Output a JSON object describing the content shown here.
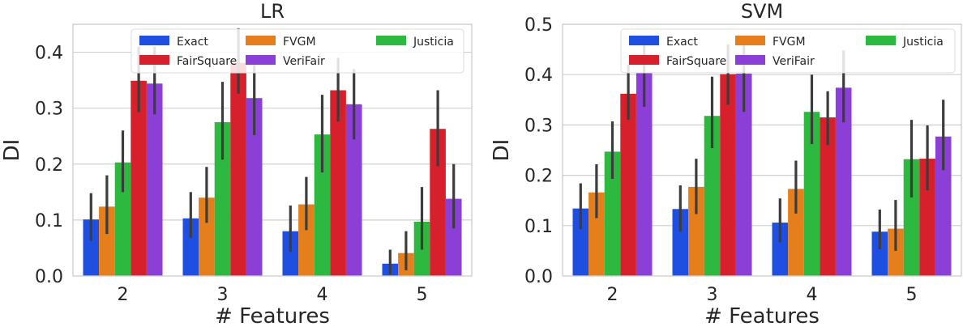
{
  "chart_data": [
    {
      "type": "bar",
      "title": "LR",
      "xlabel": "# Features",
      "ylabel": "DI",
      "categories": [
        "2",
        "3",
        "4",
        "5"
      ],
      "ylim": [
        0,
        0.45
      ],
      "yticks": [
        0.0,
        0.1,
        0.2,
        0.3,
        0.4
      ],
      "ytick_labels": [
        "0.0",
        "0.1",
        "0.2",
        "0.3",
        "0.4"
      ],
      "grid": true,
      "legend_position": "top-right",
      "series": [
        {
          "name": "Exact",
          "color": "#1f4fe0",
          "values": [
            0.101,
            0.103,
            0.08,
            0.022
          ],
          "err_low": [
            0.063,
            0.068,
            0.043,
            0.003
          ],
          "err_high": [
            0.148,
            0.15,
            0.126,
            0.047
          ]
        },
        {
          "name": "FVGM",
          "color": "#e57f1c",
          "values": [
            0.124,
            0.14,
            0.128,
            0.041
          ],
          "err_low": [
            0.075,
            0.095,
            0.082,
            0.01
          ],
          "err_high": [
            0.18,
            0.195,
            0.177,
            0.08
          ]
        },
        {
          "name": "Justicia",
          "color": "#2db83f",
          "values": [
            0.203,
            0.275,
            0.253,
            0.097
          ],
          "err_low": [
            0.15,
            0.208,
            0.185,
            0.047
          ],
          "err_high": [
            0.26,
            0.347,
            0.324,
            0.159
          ]
        },
        {
          "name": "FairSquare",
          "color": "#d6202b",
          "values": [
            0.349,
            0.381,
            0.332,
            0.263
          ],
          "err_low": [
            0.293,
            0.326,
            0.276,
            0.196
          ],
          "err_high": [
            0.41,
            0.443,
            0.39,
            0.332
          ]
        },
        {
          "name": "VeriFair",
          "color": "#8b3fd6",
          "values": [
            0.344,
            0.318,
            0.307,
            0.138
          ],
          "err_low": [
            0.289,
            0.252,
            0.244,
            0.085
          ],
          "err_high": [
            0.41,
            0.39,
            0.37,
            0.2
          ]
        }
      ]
    },
    {
      "type": "bar",
      "title": "SVM",
      "xlabel": "# Features",
      "ylabel": "DI",
      "categories": [
        "2",
        "3",
        "4",
        "5"
      ],
      "ylim": [
        0,
        0.5
      ],
      "yticks": [
        0.0,
        0.1,
        0.2,
        0.3,
        0.4,
        0.5
      ],
      "ytick_labels": [
        "0.0",
        "0.1",
        "0.2",
        "0.3",
        "0.4",
        "0.5"
      ],
      "grid": true,
      "legend_position": "top-right",
      "series": [
        {
          "name": "Exact",
          "color": "#1f4fe0",
          "values": [
            0.134,
            0.133,
            0.106,
            0.088
          ],
          "err_low": [
            0.093,
            0.088,
            0.067,
            0.053
          ],
          "err_high": [
            0.184,
            0.18,
            0.154,
            0.132
          ]
        },
        {
          "name": "FVGM",
          "color": "#e57f1c",
          "values": [
            0.166,
            0.177,
            0.173,
            0.094
          ],
          "err_low": [
            0.115,
            0.123,
            0.124,
            0.05
          ],
          "err_high": [
            0.222,
            0.233,
            0.229,
            0.151
          ]
        },
        {
          "name": "Justicia",
          "color": "#2db83f",
          "values": [
            0.247,
            0.318,
            0.326,
            0.232
          ],
          "err_low": [
            0.193,
            0.254,
            0.262,
            0.156
          ],
          "err_high": [
            0.307,
            0.396,
            0.4,
            0.31
          ]
        },
        {
          "name": "FairSquare",
          "color": "#d6202b",
          "values": [
            0.362,
            0.401,
            0.315,
            0.233
          ],
          "err_low": [
            0.31,
            0.34,
            0.26,
            0.17
          ],
          "err_high": [
            0.42,
            0.46,
            0.367,
            0.299
          ]
        },
        {
          "name": "VeriFair",
          "color": "#8b3fd6",
          "values": [
            0.403,
            0.402,
            0.374,
            0.277
          ],
          "err_low": [
            0.336,
            0.326,
            0.305,
            0.21
          ],
          "err_high": [
            0.465,
            0.475,
            0.448,
            0.35
          ]
        }
      ]
    }
  ]
}
